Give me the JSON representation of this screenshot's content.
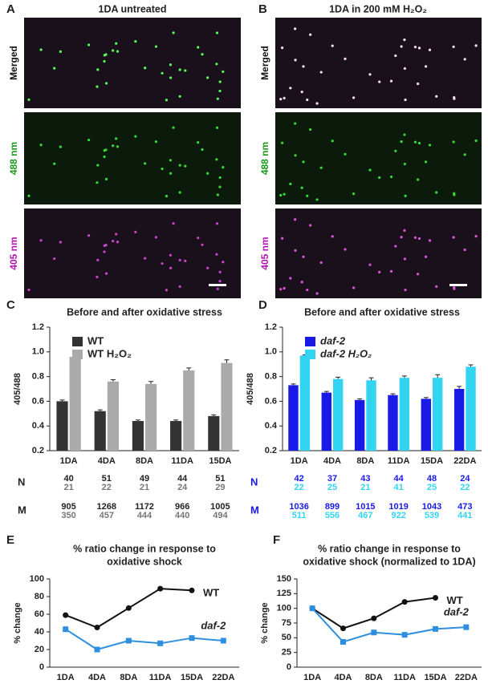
{
  "images": {
    "left": {
      "letter": "A",
      "title": "1DA untreated"
    },
    "right": {
      "letter": "B",
      "title": "1DA in 200 mM H₂O₂"
    },
    "channels": [
      "Merged",
      "488 nm",
      "405 nm"
    ]
  },
  "chart_data": [
    {
      "type": "bar",
      "letter": "C",
      "title": "Before and after oxidative stress",
      "ylabel": "405/488",
      "categories": [
        "1DA",
        "4DA",
        "8DA",
        "11DA",
        "15DA"
      ],
      "series": [
        {
          "name": "WT",
          "color": "#333333",
          "values": [
            0.6,
            0.52,
            0.44,
            0.44,
            0.48
          ],
          "errors": [
            0.01,
            0.01,
            0.008,
            0.008,
            0.01
          ]
        },
        {
          "name": "WT  H₂O₂",
          "color": "#aaaaaa",
          "values": [
            0.96,
            0.76,
            0.74,
            0.85,
            0.91
          ],
          "errors": [
            0.01,
            0.015,
            0.02,
            0.02,
            0.025
          ]
        }
      ],
      "ylim": [
        0.2,
        1.2
      ],
      "yticks": [
        0.2,
        0.4,
        0.6,
        0.8,
        {
          "value": 1,
          "label": "1.0"
        },
        1.2
      ],
      "table": [
        {
          "label": "N",
          "values": [
            40,
            51,
            49,
            44,
            51
          ],
          "values2": [
            21,
            22,
            21,
            24,
            29
          ]
        },
        {
          "label": "M",
          "values": [
            905,
            1268,
            1172,
            966,
            1005
          ],
          "values2": [
            350,
            457,
            444,
            440,
            494
          ]
        }
      ]
    },
    {
      "type": "bar",
      "letter": "D",
      "title": "Before and after oxidative stress",
      "ylabel": "405/488",
      "categories": [
        "1DA",
        "4DA",
        "8DA",
        "11DA",
        "15DA",
        "22DA"
      ],
      "series": [
        {
          "name": "daf-2",
          "color": "#1a1ae6",
          "values": [
            0.73,
            0.67,
            0.61,
            0.65,
            0.62,
            0.7
          ],
          "errors": [
            0.01,
            0.01,
            0.01,
            0.01,
            0.01,
            0.02
          ]
        },
        {
          "name": "daf-2  H₂O₂",
          "color": "#33d4f2",
          "values": [
            0.97,
            0.78,
            0.77,
            0.79,
            0.79,
            0.88
          ],
          "errors": [
            0.005,
            0.015,
            0.02,
            0.015,
            0.025,
            0.015
          ]
        }
      ],
      "ylim": [
        0.2,
        1.2
      ],
      "yticks": [
        0.2,
        0.4,
        0.6,
        0.8,
        {
          "value": 1,
          "label": "1.0"
        },
        1.2
      ],
      "table": [
        {
          "label": "N",
          "values": [
            42,
            37,
            43,
            44,
            48,
            24
          ],
          "values2": [
            22,
            25,
            21,
            41,
            25,
            22
          ]
        },
        {
          "label": "M",
          "values": [
            1036,
            899,
            1015,
            1019,
            1043,
            473
          ],
          "values2": [
            511,
            556,
            467,
            922,
            539,
            441
          ]
        }
      ]
    },
    {
      "type": "line",
      "letter": "E",
      "title": [
        "% ratio change in response to",
        "oxidative shock"
      ],
      "ylabel": "% change",
      "categories": [
        "1DA",
        "4DA",
        "8DA",
        "11DA",
        "15DA",
        "22DA"
      ],
      "series": [
        {
          "name": "WT",
          "color": "#111111",
          "values": [
            59,
            45,
            67,
            89,
            87,
            null
          ]
        },
        {
          "name": "daf-2",
          "color": "#2e8fe0",
          "values": [
            43,
            20,
            30,
            27,
            33,
            30
          ]
        }
      ],
      "ylim": [
        0,
        100
      ],
      "yticks": [
        0,
        20,
        40,
        60,
        80,
        100
      ]
    },
    {
      "type": "line",
      "letter": "F",
      "title": [
        "% ratio change in response to",
        "oxidative shock (normalized to 1DA)"
      ],
      "ylabel": "% change",
      "categories": [
        "1DA",
        "4DA",
        "8DA",
        "11DA",
        "15DA",
        "22DA"
      ],
      "series": [
        {
          "name": "WT",
          "color": "#111111",
          "values": [
            100,
            66,
            83,
            111,
            118,
            null
          ]
        },
        {
          "name": "daf-2",
          "color": "#2e8fe0",
          "values": [
            100,
            43,
            59,
            55,
            65,
            68
          ]
        }
      ],
      "ylim": [
        0,
        150
      ],
      "yticks": [
        0,
        25,
        50,
        75,
        100,
        125,
        150
      ]
    }
  ]
}
